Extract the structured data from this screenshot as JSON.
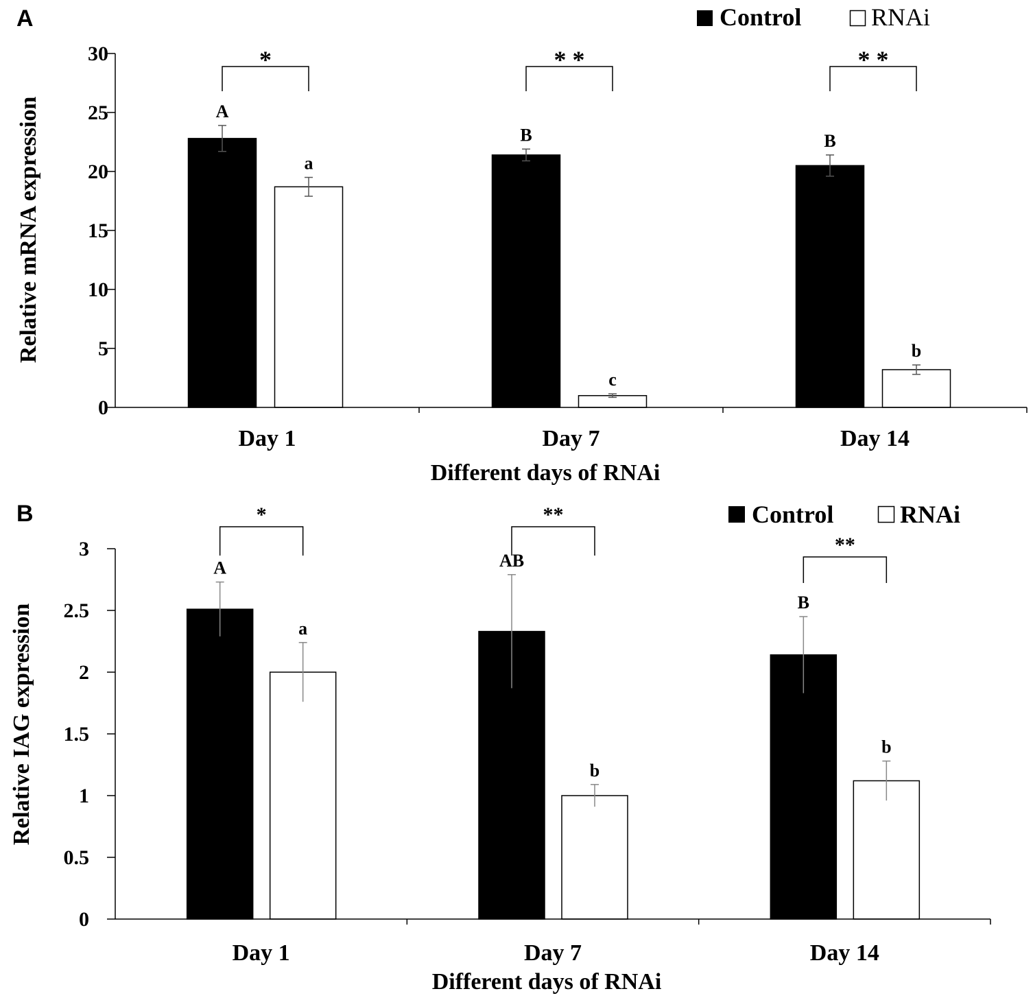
{
  "chart_data": [
    {
      "panel": "A",
      "type": "bar",
      "categories": [
        "Day 1",
        "Day 7",
        "Day 14"
      ],
      "series": [
        {
          "name": "Control",
          "color": "#000000",
          "values": [
            22.8,
            21.4,
            20.5
          ],
          "errors": [
            1.1,
            0.5,
            0.9
          ],
          "letters": [
            "A",
            "B",
            "B"
          ]
        },
        {
          "name": "RNAi",
          "color": "#ffffff",
          "values": [
            18.7,
            1.0,
            3.2
          ],
          "errors": [
            0.8,
            0.15,
            0.4
          ],
          "letters": [
            "a",
            "c",
            "b"
          ]
        }
      ],
      "significance": [
        "*",
        "* *",
        "* *"
      ],
      "xlabel": "Different days of RNAi",
      "ylabel": "Relative mRNA expression",
      "ylim": [
        0,
        30
      ],
      "yticks": [
        0,
        5,
        10,
        15,
        20,
        25,
        30
      ],
      "ytick_labels": [
        "0",
        "5",
        "10",
        "15",
        "20",
        "25",
        "30"
      ],
      "legend": [
        "Control",
        "RNAi"
      ]
    },
    {
      "panel": "B",
      "type": "bar",
      "categories": [
        "Day 1",
        "Day 7",
        "Day 14"
      ],
      "series": [
        {
          "name": "Control",
          "color": "#000000",
          "values": [
            2.51,
            2.33,
            2.14
          ],
          "errors": [
            0.22,
            0.46,
            0.31
          ],
          "letters": [
            "A",
            "AB",
            "B"
          ]
        },
        {
          "name": "RNAi",
          "color": "#ffffff",
          "values": [
            2.0,
            1.0,
            1.12
          ],
          "errors": [
            0.24,
            0.09,
            0.16
          ],
          "letters": [
            "a",
            "b",
            "b"
          ]
        }
      ],
      "significance": [
        "*",
        "**",
        "**"
      ],
      "xlabel": "Different days of RNAi",
      "ylabel": "Relative IAG expression",
      "ylim": [
        0,
        3
      ],
      "yticks": [
        0,
        0.5,
        1,
        1.5,
        2,
        2.5,
        3
      ],
      "ytick_labels": [
        "0",
        "0.5",
        "1",
        "1.5",
        "2",
        "2.5",
        "3"
      ],
      "legend": [
        "Control",
        "RNAi"
      ]
    }
  ]
}
